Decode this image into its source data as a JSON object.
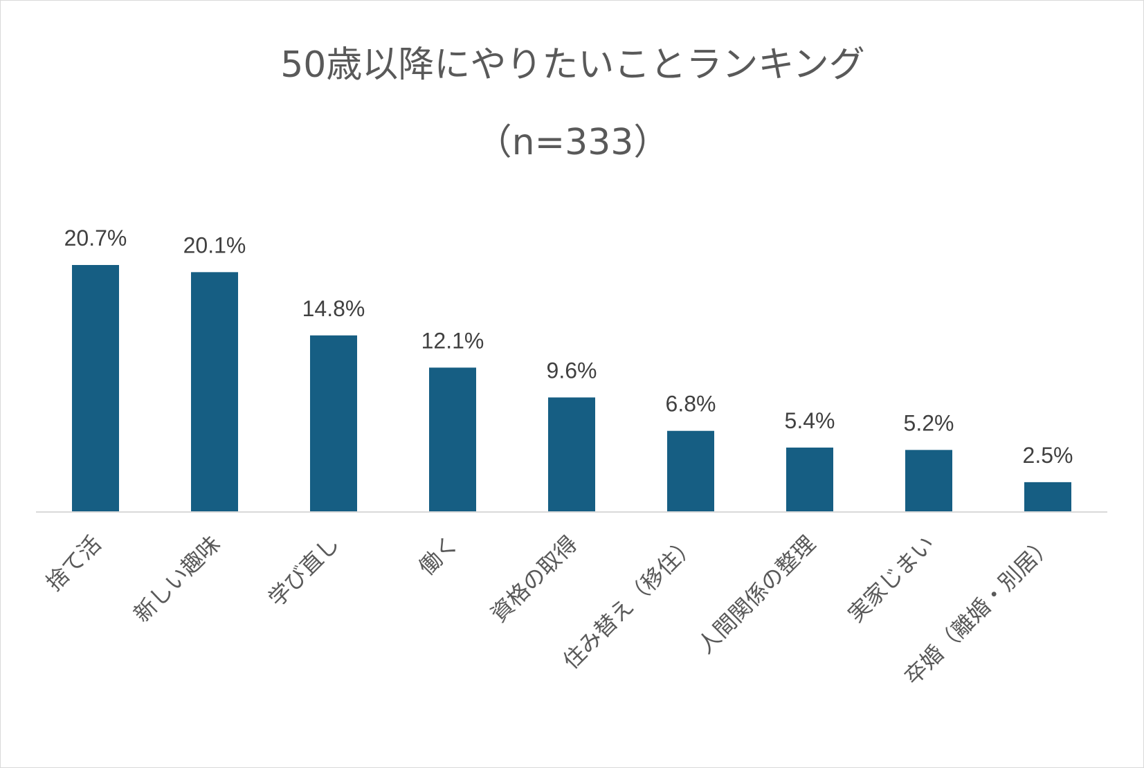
{
  "chart_data": {
    "type": "bar",
    "title": "50歳以降にやりたいことランキング",
    "subtitle": "（n=333）",
    "categories": [
      "捨て活",
      "新しい趣味",
      "学び直し",
      "働く",
      "資格の取得",
      "住み替え（移住）",
      "人間関係の整理",
      "実家じまい",
      "卒婚（離婚・別居）"
    ],
    "values": [
      20.7,
      20.1,
      14.8,
      12.1,
      9.6,
      6.8,
      5.4,
      5.2,
      2.5
    ],
    "value_labels": [
      "20.7%",
      "20.1%",
      "14.8%",
      "12.1%",
      "9.6%",
      "6.8%",
      "5.4%",
      "5.2%",
      "2.5%"
    ],
    "xlabel": "",
    "ylabel": "",
    "ylim": [
      0,
      20.7
    ],
    "grid": false,
    "legend": "none",
    "bar_color": "#165E83"
  }
}
